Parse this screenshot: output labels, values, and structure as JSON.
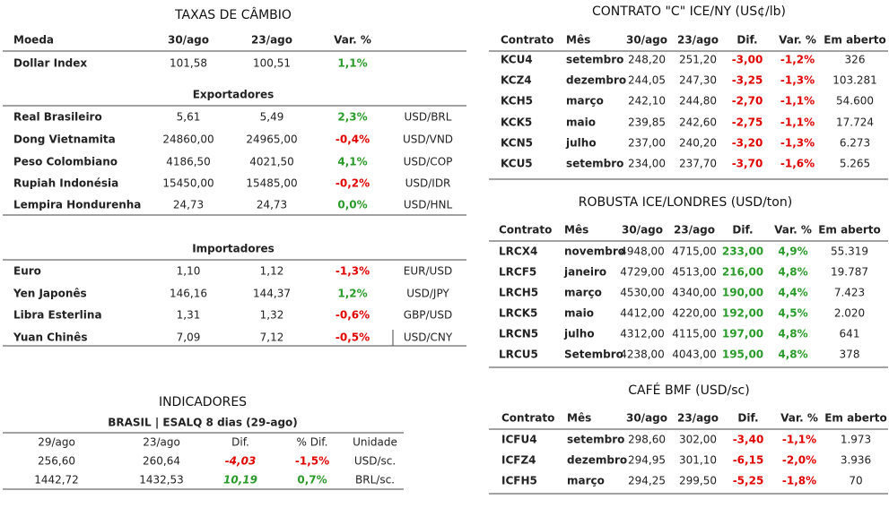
{
  "taxas": {
    "title": "TAXAS DE CÂMBIO",
    "header": [
      "Moeda",
      "30/ago",
      "23/ago",
      "Var. %"
    ],
    "rows": [
      [
        "Dollar Index",
        "101,58",
        "100,51",
        "1,1%"
      ]
    ],
    "exportadores": {
      "title": "Exportadores",
      "rows": [
        [
          "Real Brasileiro",
          "5,61",
          "5,49",
          "2,3%",
          "USD/BRL"
        ],
        [
          "Dong Vietnamita",
          "24860,00",
          "24965,00",
          "-0,4%",
          "USD/VND"
        ],
        [
          "Peso Colombiano",
          "4186,50",
          "4021,50",
          "4,1%",
          "USD/COP"
        ],
        [
          "Rupiah Indonésia",
          "15450,00",
          "15485,00",
          "-0,2%",
          "USD/IDR"
        ],
        [
          "Lempira Hondurenha",
          "24,73",
          "24,73",
          "0,0%",
          "USD/HNL"
        ]
      ]
    },
    "importadores": {
      "title": "Importadores",
      "rows": [
        [
          "Euro",
          "1,10",
          "1,12",
          "-1,3%",
          "EUR/USD"
        ],
        [
          "Yen Japonês",
          "146,16",
          "144,37",
          "1,2%",
          "USD/JPY"
        ],
        [
          "Libra Esterlina",
          "1,31",
          "1,32",
          "-0,6%",
          "GBP/USD"
        ],
        [
          "Yuan Chinês",
          "7,09",
          "7,12",
          "-0,5%",
          "USD/CNY"
        ]
      ]
    }
  },
  "indicadores": {
    "title": "INDICADORES",
    "subtitle": "BRASIL | ESALQ 8 dias (29-ago)",
    "header": [
      "29/ago",
      "23/ago",
      "Dif.",
      "% Dif.",
      "Unidade"
    ],
    "rows": [
      [
        "256,60",
        "260,64",
        "-4,03",
        "-1,5%",
        "USD/sc."
      ],
      [
        "1442,72",
        "1432,53",
        "10,19",
        "0,7%",
        "BRL/sc."
      ]
    ]
  },
  "contrato_c": {
    "title": "CONTRATO \"C\" ICE/NY (US¢/lb)",
    "header": [
      "Contrato",
      "Mês",
      "30/ago",
      "23/ago",
      "Dif.",
      "Var. %",
      "Em aberto"
    ],
    "rows": [
      [
        "KCU4",
        "setembro",
        "248,20",
        "251,20",
        "-3,00",
        "-1,2%",
        "326"
      ],
      [
        "KCZ4",
        "dezembro",
        "244,05",
        "247,30",
        "-3,25",
        "-1,3%",
        "103.281"
      ],
      [
        "KCH5",
        "março",
        "242,10",
        "244,80",
        "-2,70",
        "-1,1%",
        "54.600"
      ],
      [
        "KCK5",
        "maio",
        "239,85",
        "242,60",
        "-2,75",
        "-1,1%",
        "17.724"
      ],
      [
        "KCN5",
        "julho",
        "237,00",
        "240,20",
        "-3,20",
        "-1,3%",
        "6.273"
      ],
      [
        "KCU5",
        "setembro",
        "234,00",
        "237,70",
        "-3,70",
        "-1,6%",
        "5.265"
      ]
    ]
  },
  "robusta": {
    "title": "ROBUSTA ICE/LONDRES (USD/ton)",
    "header": [
      "Contrato",
      "Mês",
      "30/ago",
      "23/ago",
      "Dif.",
      "Var. %",
      "Em aberto"
    ],
    "rows": [
      [
        "LRCX4",
        "novembro",
        "4948,00",
        "4715,00",
        "233,00",
        "4,9%",
        "55.319"
      ],
      [
        "LRCF5",
        "janeiro",
        "4729,00",
        "4513,00",
        "216,00",
        "4,8%",
        "19.787"
      ],
      [
        "LRCH5",
        "março",
        "4530,00",
        "4340,00",
        "190,00",
        "4,4%",
        "7.423"
      ],
      [
        "LRCK5",
        "maio",
        "4412,00",
        "4220,00",
        "192,00",
        "4,5%",
        "2.020"
      ],
      [
        "LRCN5",
        "julho",
        "4312,00",
        "4115,00",
        "197,00",
        "4,8%",
        "641"
      ],
      [
        "LRCU5",
        "Setembro",
        "4238,00",
        "4043,00",
        "195,00",
        "4,8%",
        "378"
      ]
    ]
  },
  "cafe_bmf": {
    "title": "CAFÉ BMF (USD/sc)",
    "header": [
      "Contrato",
      "Mês",
      "30/ago",
      "23/ago",
      "Dif.",
      "Var. %",
      "Em aberto"
    ],
    "rows": [
      [
        "ICFU4",
        "setembro",
        "298,60",
        "302,00",
        "-3,40",
        "-1,1%",
        "1.973"
      ],
      [
        "ICFZ4",
        "dezembro",
        "294,95",
        "301,10",
        "-6,15",
        "-2,0%",
        "3.936"
      ],
      [
        "ICFH5",
        "março",
        "294,25",
        "299,50",
        "-5,25",
        "-1,8%",
        "70"
      ]
    ]
  }
}
